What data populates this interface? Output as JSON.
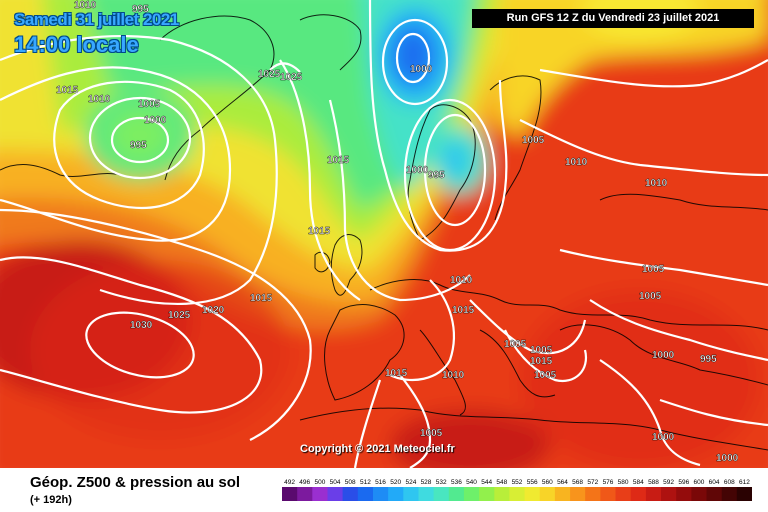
{
  "header": {
    "date": "Samedi 31 juillet 2021",
    "time": "14:00 locale",
    "run": "Run GFS 12 Z du Vendredi 23 juillet 2021"
  },
  "copyright": "Copyright © 2021 Meteociel.fr",
  "legend": {
    "title": "Géop. Z500 & pression au sol",
    "subtitle": "(+ 192h)",
    "scale_labels": [
      "492",
      "496",
      "500",
      "504",
      "508",
      "512",
      "516",
      "520",
      "524",
      "528",
      "532",
      "536",
      "540",
      "544",
      "548",
      "552",
      "556",
      "560",
      "564",
      "568",
      "572",
      "576",
      "580",
      "584",
      "588",
      "592",
      "596",
      "600",
      "604",
      "608",
      "612"
    ],
    "scale_colors": [
      "#5a0a6e",
      "#7c1a9e",
      "#9a2fd0",
      "#6a3ee8",
      "#2a4ee8",
      "#1a6af0",
      "#1e8cf5",
      "#22aaf8",
      "#2fc6f0",
      "#3fdbe0",
      "#49e6c0",
      "#52ea90",
      "#6ef06a",
      "#92f04c",
      "#b8ee3a",
      "#d8ee34",
      "#f0ea30",
      "#f8d428",
      "#f8b420",
      "#f8941c",
      "#f47418",
      "#f05818",
      "#e83e18",
      "#de2a16",
      "#c81c14",
      "#ae1210",
      "#940c0c",
      "#7a0808",
      "#600606",
      "#440404",
      "#2a0202"
    ]
  },
  "isobars": {
    "labels": [
      "1010",
      "995",
      "1015",
      "1010",
      "1005",
      "1000",
      "995",
      "1025",
      "1025",
      "1000",
      "1000",
      "995",
      "1015",
      "1015",
      "1015",
      "1010",
      "1005",
      "1005",
      "1005",
      "1005",
      "1005",
      "1010",
      "1030",
      "1025",
      "1020",
      "1015",
      "1015",
      "1015",
      "1010",
      "1005",
      "1005",
      "1000",
      "995",
      "1010",
      "1000",
      "1000"
    ]
  },
  "colors": {
    "accent": "#38a8ff",
    "isobar": "#ffffff",
    "land_border": "#000000"
  }
}
